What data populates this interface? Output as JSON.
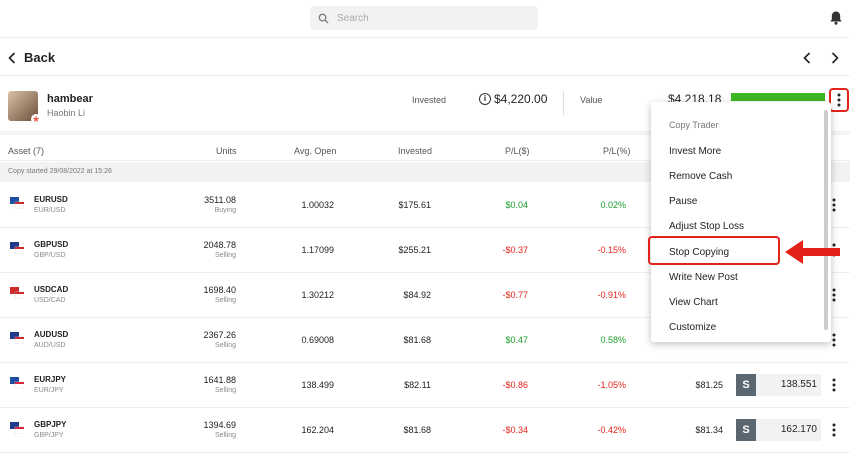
{
  "search": {
    "placeholder": "Search"
  },
  "nav": {
    "back_label": "Back"
  },
  "trader": {
    "username": "hambear",
    "real_name": "Haobin Li",
    "invested_label": "Invested",
    "invested_value": "$4,220.00",
    "value_label": "Value",
    "value_value": "$4,218.18"
  },
  "table": {
    "headers": {
      "asset": "Asset (7)",
      "units": "Units",
      "avg_open": "Avg. Open",
      "invested": "Invested",
      "pl": "P/L($)",
      "plp": "P/L(%)"
    },
    "copy_started": "Copy started 29/08/2022 at 15:26",
    "rows": [
      {
        "symbol": "EURUSD",
        "pair": "EUR/USD",
        "units": "3511.08",
        "side": "Buying",
        "avg_open": "1.00032",
        "invested": "$175.61",
        "pl": "$0.04",
        "plp": "0.02%",
        "value": "",
        "price": ""
      },
      {
        "symbol": "GBPUSD",
        "pair": "GBP/USD",
        "units": "2048.78",
        "side": "Selling",
        "avg_open": "1.17099",
        "invested": "$255.21",
        "pl": "-$0.37",
        "plp": "-0.15%",
        "value": "",
        "price": ""
      },
      {
        "symbol": "USDCAD",
        "pair": "USD/CAD",
        "units": "1698.40",
        "side": "Selling",
        "avg_open": "1.30212",
        "invested": "$84.92",
        "pl": "-$0.77",
        "plp": "-0.91%",
        "value": "",
        "price": ""
      },
      {
        "symbol": "AUDUSD",
        "pair": "AUD/USD",
        "units": "2367.26",
        "side": "Selling",
        "avg_open": "0.69008",
        "invested": "$81.68",
        "pl": "$0.47",
        "plp": "0.58%",
        "value": "",
        "price": ""
      },
      {
        "symbol": "EURJPY",
        "pair": "EUR/JPY",
        "units": "1641.88",
        "side": "Selling",
        "avg_open": "138.499",
        "invested": "$82.11",
        "pl": "-$0.86",
        "plp": "-1.05%",
        "value": "$81.25",
        "price": "138.551"
      },
      {
        "symbol": "GBPJPY",
        "pair": "GBP/JPY",
        "units": "1394.69",
        "side": "Selling",
        "avg_open": "162.204",
        "invested": "$81.68",
        "pl": "-$0.34",
        "plp": "-0.42%",
        "value": "$81.34",
        "price": "162.170"
      }
    ],
    "sell_label": "S"
  },
  "menu": {
    "title": "Copy Trader",
    "items": [
      "Invest More",
      "Remove Cash",
      "Pause",
      "Adjust Stop Loss",
      "Stop Copying",
      "Write New Post",
      "View Chart",
      "Customize"
    ]
  },
  "colors": {
    "positive": "#1a9e2a",
    "negative": "#e3231b",
    "progress": "#3cb623",
    "highlight": "#e3231b"
  },
  "progress": {
    "value_fraction": 1.0
  }
}
